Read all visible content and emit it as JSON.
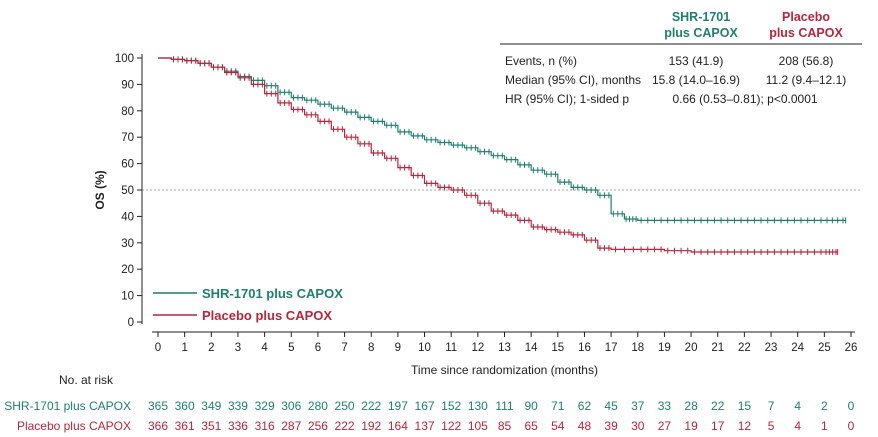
{
  "colors": {
    "shr": "#1f7f6e",
    "placebo": "#b5263c",
    "axis": "#222222",
    "ref": "#888888"
  },
  "chart_data": {
    "type": "line",
    "xlabel": "Time since randomization (months)",
    "ylabel": "OS (%)",
    "xlim": [
      0,
      26
    ],
    "ylim": [
      0,
      100
    ],
    "x_ticks": [
      0,
      1,
      2,
      3,
      4,
      5,
      6,
      7,
      8,
      9,
      10,
      11,
      12,
      13,
      14,
      15,
      16,
      17,
      18,
      19,
      20,
      21,
      22,
      23,
      24,
      25,
      26
    ],
    "y_ticks": [
      0,
      10,
      20,
      30,
      40,
      50,
      60,
      70,
      80,
      90,
      100
    ],
    "reference_line_y": 50,
    "series": [
      {
        "name": "SHR-1701 plus CAPOX",
        "color_key": "shr",
        "points": [
          [
            0,
            100
          ],
          [
            0.5,
            99.5
          ],
          [
            1,
            99
          ],
          [
            1.5,
            98
          ],
          [
            2,
            96.5
          ],
          [
            2.5,
            95
          ],
          [
            3,
            93
          ],
          [
            3.5,
            91.5
          ],
          [
            4,
            89.5
          ],
          [
            4.5,
            87
          ],
          [
            5,
            85
          ],
          [
            5.5,
            84
          ],
          [
            6,
            82.5
          ],
          [
            6.5,
            81
          ],
          [
            7,
            79.5
          ],
          [
            7.5,
            77.5
          ],
          [
            8,
            76
          ],
          [
            8.5,
            74.5
          ],
          [
            9,
            72
          ],
          [
            9.5,
            70.5
          ],
          [
            10,
            69
          ],
          [
            10.5,
            68
          ],
          [
            11,
            67
          ],
          [
            11.5,
            66
          ],
          [
            12,
            64.5
          ],
          [
            12.5,
            63
          ],
          [
            13,
            61.5
          ],
          [
            13.5,
            59.5
          ],
          [
            14,
            57.5
          ],
          [
            14.5,
            56
          ],
          [
            15,
            53
          ],
          [
            15.5,
            51
          ],
          [
            16,
            50
          ],
          [
            16.5,
            48
          ],
          [
            17,
            41
          ],
          [
            17.5,
            39
          ],
          [
            18,
            38.5
          ],
          [
            19,
            38.5
          ],
          [
            20,
            38.5
          ],
          [
            21,
            38.5
          ],
          [
            22,
            38.5
          ],
          [
            23,
            38.5
          ],
          [
            24,
            38.5
          ],
          [
            25,
            38.5
          ],
          [
            25.8,
            38.5
          ]
        ]
      },
      {
        "name": "Placebo plus CAPOX",
        "color_key": "placebo",
        "points": [
          [
            0,
            100
          ],
          [
            0.5,
            99.5
          ],
          [
            1,
            99
          ],
          [
            1.5,
            98
          ],
          [
            2,
            96.5
          ],
          [
            2.5,
            94.5
          ],
          [
            3,
            92.5
          ],
          [
            3.5,
            90
          ],
          [
            4,
            86.5
          ],
          [
            4.5,
            83
          ],
          [
            5,
            80.5
          ],
          [
            5.5,
            78.5
          ],
          [
            6,
            76
          ],
          [
            6.5,
            73
          ],
          [
            7,
            70
          ],
          [
            7.5,
            67.5
          ],
          [
            8,
            64
          ],
          [
            8.5,
            62
          ],
          [
            9,
            58.5
          ],
          [
            9.5,
            55.5
          ],
          [
            10,
            52.5
          ],
          [
            10.5,
            51
          ],
          [
            11,
            50
          ],
          [
            11.5,
            48
          ],
          [
            12,
            45
          ],
          [
            12.5,
            42
          ],
          [
            13,
            40.5
          ],
          [
            13.5,
            38.5
          ],
          [
            14,
            36
          ],
          [
            14.5,
            35
          ],
          [
            15,
            34
          ],
          [
            15.5,
            33
          ],
          [
            16,
            31
          ],
          [
            16.5,
            28
          ],
          [
            17,
            27.5
          ],
          [
            18,
            27.5
          ],
          [
            19,
            27
          ],
          [
            20,
            26.5
          ],
          [
            21,
            26.5
          ],
          [
            22,
            26.5
          ],
          [
            23,
            26.5
          ],
          [
            24,
            26.5
          ],
          [
            25,
            26.5
          ],
          [
            25.5,
            26.5
          ]
        ]
      }
    ],
    "legend": {
      "position": "bottom-left",
      "entries": [
        "SHR-1701 plus CAPOX",
        "Placebo plus CAPOX"
      ]
    }
  },
  "stats_table": {
    "headers": [
      [
        "SHR-1701",
        "plus CAPOX"
      ],
      [
        "Placebo",
        "plus CAPOX"
      ]
    ],
    "rows": [
      {
        "label": "Events, n (%)",
        "shr": "153 (41.9)",
        "placebo": "208 (56.8)"
      },
      {
        "label": "Median (95% CI), months",
        "shr": "15.8 (14.0–16.9)",
        "placebo": "11.2 (9.4–12.1)"
      },
      {
        "label": "HR (95% CI); 1-sided p",
        "combined": "0.66 (0.53–0.81); p<0.0001"
      }
    ]
  },
  "risk_table": {
    "title": "No. at risk",
    "rows": [
      {
        "label": "SHR-1701 plus CAPOX",
        "color_key": "shr",
        "values": [
          365,
          360,
          349,
          339,
          329,
          306,
          280,
          250,
          222,
          197,
          167,
          152,
          130,
          111,
          90,
          71,
          62,
          45,
          37,
          33,
          28,
          22,
          15,
          7,
          4,
          2,
          0
        ]
      },
      {
        "label": "Placebo plus CAPOX",
        "color_key": "placebo",
        "values": [
          366,
          361,
          351,
          336,
          316,
          287,
          256,
          222,
          192,
          164,
          137,
          122,
          105,
          85,
          65,
          54,
          48,
          39,
          30,
          27,
          19,
          17,
          12,
          5,
          4,
          1,
          0
        ]
      }
    ]
  }
}
